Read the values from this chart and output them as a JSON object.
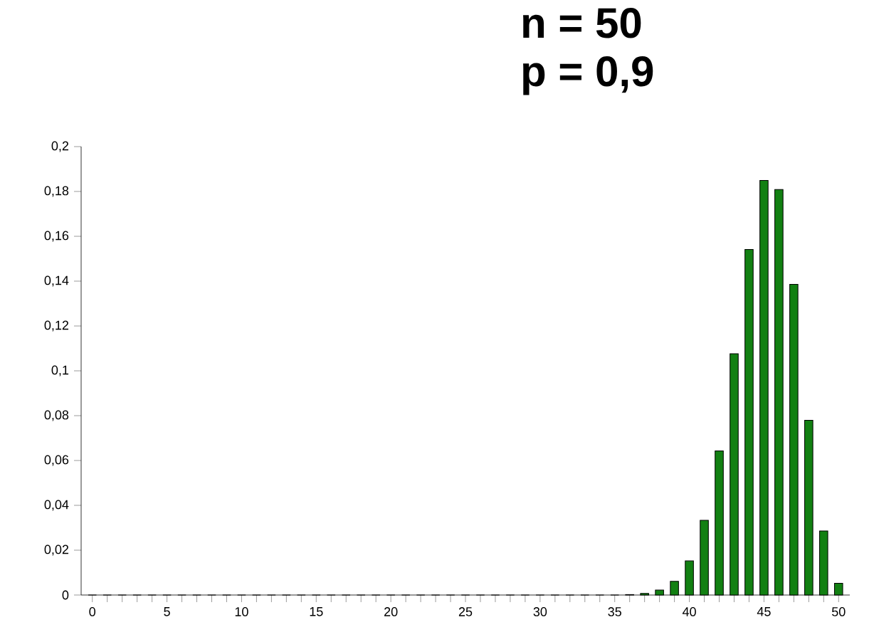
{
  "chart_data": {
    "type": "bar",
    "title": "n = 50",
    "subtitle": "p = 0,9",
    "x": [
      0,
      1,
      2,
      3,
      4,
      5,
      6,
      7,
      8,
      9,
      10,
      11,
      12,
      13,
      14,
      15,
      16,
      17,
      18,
      19,
      20,
      21,
      22,
      23,
      24,
      25,
      26,
      27,
      28,
      29,
      30,
      31,
      32,
      33,
      34,
      35,
      36,
      37,
      38,
      39,
      40,
      41,
      42,
      43,
      44,
      45,
      46,
      47,
      48,
      49,
      50
    ],
    "values": [
      0,
      0,
      0,
      0,
      0,
      0,
      0,
      0,
      0,
      0,
      0,
      0,
      0,
      0,
      0,
      0,
      0,
      0,
      0,
      0,
      0,
      0,
      0,
      0,
      0,
      0,
      0,
      0,
      0,
      0,
      0,
      0,
      0,
      0,
      0,
      0,
      0.0002,
      0.0007,
      0.0022,
      0.0061,
      0.0152,
      0.0333,
      0.0643,
      0.1076,
      0.1541,
      0.1849,
      0.1809,
      0.1386,
      0.0779,
      0.0286,
      0.0052
    ],
    "color": "#128012",
    "xlim": [
      -0.75,
      50.75
    ],
    "xticks": [
      0,
      5,
      10,
      15,
      20,
      25,
      30,
      35,
      40,
      45,
      50
    ],
    "ylim": [
      0,
      0.2
    ],
    "yticks": [
      0,
      {
        "value": 0.02,
        "label": "0,02"
      },
      {
        "value": 0.04,
        "label": "0,04"
      },
      {
        "value": 0.06,
        "label": "0,06"
      },
      {
        "value": 0.08,
        "label": "0,08"
      },
      {
        "value": 0.1,
        "label": "0,1"
      },
      {
        "value": 0.12,
        "label": "0,12"
      },
      {
        "value": 0.14,
        "label": "0,14"
      },
      {
        "value": 0.16,
        "label": "0,16"
      },
      {
        "value": 0.18,
        "label": "0,18"
      },
      {
        "value": 0.2,
        "label": "0,2"
      }
    ],
    "grid": false
  }
}
